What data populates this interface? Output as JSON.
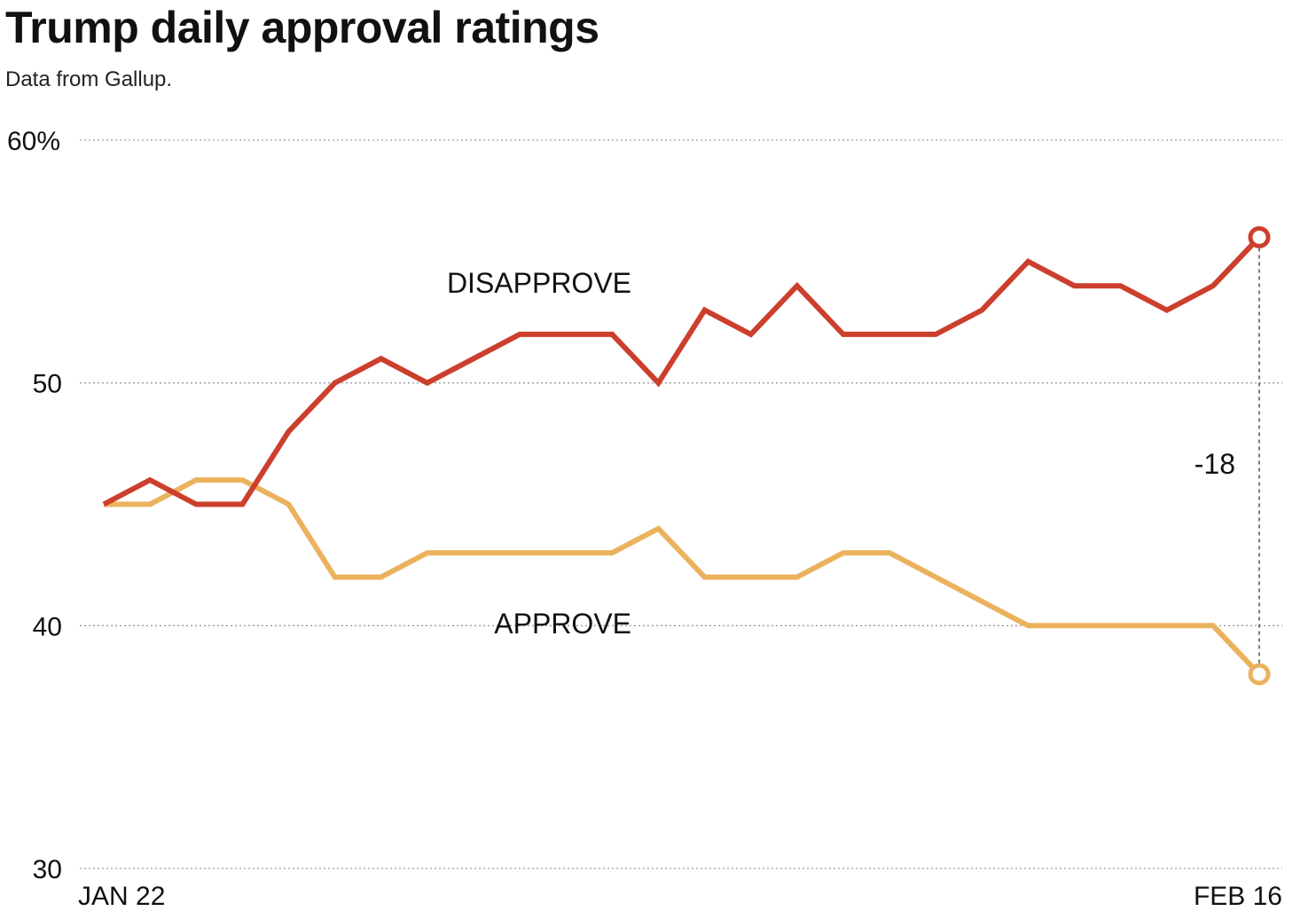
{
  "chart_data": {
    "type": "line",
    "title": "Trump daily approval ratings",
    "subtitle": "Data from Gallup.",
    "xlabel": "",
    "ylabel": "",
    "ylim": [
      30,
      60
    ],
    "yticks": [
      {
        "value": 60,
        "label": "60%"
      },
      {
        "value": 50,
        "label": "50"
      },
      {
        "value": 40,
        "label": "40"
      },
      {
        "value": 30,
        "label": "30"
      }
    ],
    "xtick_labels": {
      "start": "JAN 22",
      "end": "FEB 16"
    },
    "x": [
      0,
      1,
      2,
      3,
      4,
      5,
      6,
      7,
      8,
      9,
      10,
      11,
      12,
      13,
      14,
      15,
      16,
      17,
      18,
      19,
      20,
      21,
      22,
      23,
      24,
      25
    ],
    "series": [
      {
        "name": "DISAPPROVE",
        "color": "#cc3f2c",
        "values": [
          45,
          46,
          45,
          45,
          48,
          50,
          51,
          50,
          51,
          52,
          52,
          52,
          50,
          53,
          52,
          54,
          52,
          52,
          52,
          53,
          55,
          54,
          54,
          53,
          54,
          56
        ]
      },
      {
        "name": "APPROVE",
        "color": "#ebb25e",
        "values": [
          45,
          45,
          46,
          46,
          45,
          42,
          42,
          43,
          43,
          43,
          43,
          43,
          44,
          42,
          42,
          42,
          43,
          43,
          42,
          41,
          40,
          40,
          40,
          40,
          40,
          38
        ]
      }
    ],
    "annotation": {
      "text": "-18"
    }
  }
}
